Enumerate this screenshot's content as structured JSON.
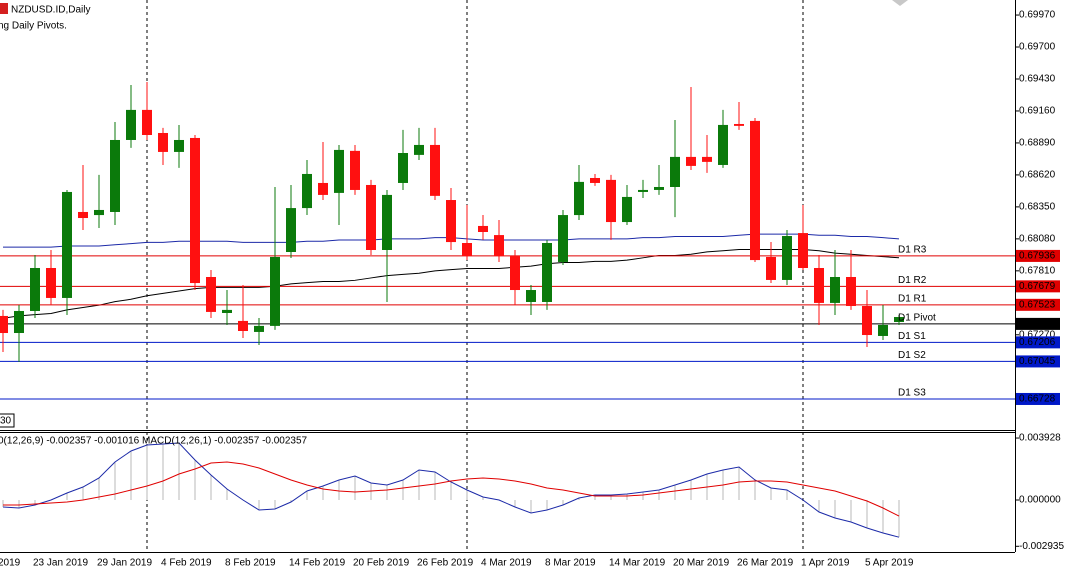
{
  "chart_data": {
    "type": "candlestick",
    "title": "NZDUSD.ID,Daily",
    "subtitle": "ng Daily Pivots.",
    "corner_label": "30",
    "x_edge_label": "2019",
    "categories": [
      null,
      null,
      "23 Jan 2019",
      null,
      null,
      null,
      "29 Jan 2019",
      null,
      null,
      null,
      "4 Feb 2019",
      null,
      null,
      null,
      "8 Feb 2019",
      null,
      null,
      null,
      "14 Feb 2019",
      null,
      null,
      null,
      "20 Feb 2019",
      null,
      null,
      null,
      "26 Feb 2019",
      null,
      null,
      null,
      "4 Mar 2019",
      null,
      null,
      null,
      "8 Mar 2019",
      null,
      null,
      null,
      "14 Mar 2019",
      null,
      null,
      null,
      "20 Mar 2019",
      null,
      null,
      null,
      "26 Mar 2019",
      null,
      null,
      null,
      "1 Apr 2019",
      null,
      null,
      null,
      "5 Apr 2019",
      null,
      null
    ],
    "open": [
      0.67429,
      0.67285,
      0.67471,
      0.67834,
      0.67581,
      0.68307,
      0.68281,
      0.68307,
      0.68915,
      0.69169,
      0.68974,
      0.68814,
      0.68932,
      0.67758,
      0.67454,
      0.67387,
      0.67294,
      0.67345,
      0.67969,
      0.6834,
      0.68552,
      0.68468,
      0.68823,
      0.68535,
      0.67986,
      0.68552,
      0.68789,
      0.68873,
      0.68408,
      0.68045,
      0.68189,
      0.68112,
      0.67935,
      0.67547,
      0.67547,
      0.67885,
      0.68281,
      0.68594,
      0.68578,
      0.68222,
      0.68476,
      0.68493,
      0.68518,
      0.68772,
      0.68772,
      0.68704,
      0.6905,
      0.69076,
      0.67927,
      0.67733,
      0.68129,
      0.67834,
      0.67539,
      0.67758,
      0.67513,
      0.6726,
      0.67378
    ],
    "high": [
      0.6748,
      0.67522,
      0.67944,
      0.67986,
      0.68493,
      0.68704,
      0.6862,
      0.69067,
      0.69379,
      0.69405,
      0.69017,
      0.69042,
      0.68957,
      0.67817,
      0.67648,
      0.6769,
      0.67412,
      0.68518,
      0.68535,
      0.68746,
      0.68898,
      0.68873,
      0.68873,
      0.68578,
      0.68493,
      0.69,
      0.69017,
      0.69017,
      0.6851,
      0.68366,
      0.68281,
      0.68239,
      0.67986,
      0.6769,
      0.68071,
      0.68324,
      0.68704,
      0.68628,
      0.6862,
      0.68535,
      0.68578,
      0.68704,
      0.69084,
      0.69362,
      0.68957,
      0.69169,
      0.69236,
      0.69101,
      0.68053,
      0.68155,
      0.68366,
      0.67944,
      0.67986,
      0.67986,
      0.67648,
      0.67522,
      0.67437
    ],
    "low": [
      0.67125,
      0.67041,
      0.67412,
      0.67522,
      0.67437,
      0.68155,
      0.68172,
      0.68197,
      0.68848,
      0.68915,
      0.68704,
      0.68679,
      0.67648,
      0.67412,
      0.67353,
      0.67243,
      0.67184,
      0.67311,
      0.67918,
      0.68281,
      0.68408,
      0.68197,
      0.68451,
      0.67944,
      0.67547,
      0.68493,
      0.68746,
      0.68408,
      0.67986,
      0.67901,
      0.68071,
      0.67885,
      0.67522,
      0.67437,
      0.6748,
      0.67859,
      0.68239,
      0.68527,
      0.68071,
      0.68197,
      0.68425,
      0.68451,
      0.68264,
      0.68662,
      0.68637,
      0.68679,
      0.69,
      0.67885,
      0.67707,
      0.6769,
      0.67817,
      0.67353,
      0.67437,
      0.6748,
      0.67167,
      0.67226,
      0.67353
    ],
    "close": [
      0.67285,
      0.67471,
      0.67834,
      0.67581,
      0.68476,
      0.68256,
      0.68324,
      0.68915,
      0.69169,
      0.68957,
      0.68814,
      0.68915,
      0.67707,
      0.67463,
      0.6748,
      0.67302,
      0.67345,
      0.67927,
      0.6834,
      0.68628,
      0.68451,
      0.68831,
      0.68493,
      0.67986,
      0.68451,
      0.68805,
      0.68873,
      0.68443,
      0.68053,
      0.67935,
      0.68138,
      0.67935,
      0.67648,
      0.67648,
      0.68045,
      0.68281,
      0.68561,
      0.68552,
      0.68222,
      0.68434,
      0.68493,
      0.68518,
      0.68772,
      0.68696,
      0.6873,
      0.69042,
      0.69034,
      0.67901,
      0.67733,
      0.68104,
      0.67834,
      0.67539,
      0.67758,
      0.67513,
      0.67268,
      0.67353,
      0.6742
    ],
    "up_color": "#0b7a0b",
    "down_color": "#ff1010",
    "ylim": [
      0.66466,
      0.70097
    ],
    "yticks": [
      {
        "value": 0.6997,
        "label": "0.69970"
      },
      {
        "value": 0.697,
        "label": "0.69700"
      },
      {
        "value": 0.6943,
        "label": "0.69430"
      },
      {
        "value": 0.6916,
        "label": "0.69160"
      },
      {
        "value": 0.6889,
        "label": "0.68890"
      },
      {
        "value": 0.6862,
        "label": "0.68620"
      },
      {
        "value": 0.6835,
        "label": "0.68350"
      },
      {
        "value": 0.6808,
        "label": "0.68080"
      },
      {
        "value": 0.6781,
        "label": "0.67810"
      },
      {
        "value": 0.6727,
        "label": "0.67270"
      }
    ],
    "moving_averages": [
      {
        "color": "#1c2aa8",
        "values": [
          0.6801,
          0.6801,
          0.6801,
          0.6801,
          0.6802,
          0.6802,
          0.6802,
          0.6803,
          0.6804,
          0.6805,
          0.6805,
          0.6806,
          0.6806,
          0.6806,
          0.6806,
          0.6805,
          0.6805,
          0.6805,
          0.6805,
          0.6806,
          0.6806,
          0.6807,
          0.6807,
          0.6807,
          0.6808,
          0.6808,
          0.6808,
          0.6809,
          0.6809,
          0.6808,
          0.6807,
          0.6807,
          0.6807,
          0.6807,
          0.6807,
          0.6807,
          0.6808,
          0.6808,
          0.6808,
          0.6808,
          0.6809,
          0.6809,
          0.681,
          0.681,
          0.681,
          0.681,
          0.6811,
          0.6812,
          0.6812,
          0.6812,
          0.6812,
          0.6811,
          0.6811,
          0.681,
          0.681,
          0.6809,
          0.6808
        ]
      },
      {
        "color": "#000000",
        "values": [
          0.6741,
          0.6743,
          0.6744,
          0.6745,
          0.6748,
          0.675,
          0.6752,
          0.6755,
          0.6757,
          0.676,
          0.6762,
          0.6764,
          0.6766,
          0.6767,
          0.6767,
          0.6767,
          0.6767,
          0.6768,
          0.677,
          0.6771,
          0.6772,
          0.6772,
          0.6773,
          0.6775,
          0.6777,
          0.6778,
          0.6779,
          0.6781,
          0.6782,
          0.6783,
          0.6783,
          0.6783,
          0.6784,
          0.6785,
          0.6787,
          0.6788,
          0.6788,
          0.6789,
          0.6789,
          0.679,
          0.6792,
          0.6794,
          0.6794,
          0.6795,
          0.6797,
          0.6798,
          0.6799,
          0.6799,
          0.6799,
          0.6799,
          0.6799,
          0.6798,
          0.6796,
          0.6795,
          0.6794,
          0.6793,
          0.6792
        ]
      }
    ],
    "pivots": [
      {
        "name": "D1 R3",
        "value": 0.67936,
        "color": "#e00000"
      },
      {
        "name": "D1 R2",
        "value": 0.67679,
        "color": "#e00000"
      },
      {
        "name": "D1 R1",
        "value": 0.67523,
        "color": "#e00000"
      },
      {
        "name": "D1 Pivot",
        "value": 0.67362,
        "color": "#000000"
      },
      {
        "name": "D1 S1",
        "value": 0.67206,
        "color": "#0018c8"
      },
      {
        "name": "D1 S2",
        "value": 0.67045,
        "color": "#0018c8"
      },
      {
        "name": "D1 S3",
        "value": 0.66728,
        "color": "#0018c8"
      }
    ],
    "macd": {
      "type": "macd",
      "legend": "0(12,26,9) -0.002357 -0.001016 MACD(12,26,1) -0.002357 -0.002357",
      "values": [
        -0.000444,
        -0.000507,
        -0.000317,
        0,
        0.000444,
        0.000824,
        0.001395,
        0.002409,
        0.003107,
        0.003487,
        0.00355,
        0.003614,
        0.002536,
        0.001585,
        0.000697,
        0,
        -0.000634,
        -0.000571,
        -0.000127,
        0.000571,
        0.000888,
        0.001268,
        0.001522,
        0.001078,
        0.000951,
        0.001268,
        0.001902,
        0.001775,
        0.001141,
        0.000634,
        0.00019,
        0,
        -0.000444,
        -0.000824,
        -0.000634,
        -0.000317,
        0.000127,
        0.000317,
        0.000317,
        0.00038,
        0.000507,
        0.000634,
        0.000951,
        0.001268,
        0.001648,
        0.001902,
        0.002092,
        0.001268,
        0.000761,
        0.000634,
        0,
        -0.000761,
        -0.001141,
        -0.001395,
        -0.001775,
        -0.002092,
        -0.002357
      ],
      "signal": [
        -0.000317,
        -0.000317,
        -0.000254,
        -0.00019,
        -0.000127,
        0,
        0.00019,
        0.00038,
        0.000634,
        0.000888,
        0.001205,
        0.001648,
        0.001965,
        0.002346,
        0.002409,
        0.002282,
        0.002029,
        0.001648,
        0.001268,
        0.000951,
        0.000697,
        0.000571,
        0.000507,
        0.000571,
        0.000634,
        0.000761,
        0.000888,
        0.001014,
        0.001205,
        0.001331,
        0.001395,
        0.001331,
        0.001205,
        0.001014,
        0.000761,
        0.000634,
        0.000444,
        0.000254,
        0.000254,
        0.000254,
        0.000317,
        0.000444,
        0.000571,
        0.000697,
        0.000824,
        0.000951,
        0.001141,
        0.001205,
        0.001205,
        0.001141,
        0.000951,
        0.000761,
        0.000571,
        0.000254,
        -6.3e-05,
        -0.000507,
        -0.001016
      ],
      "histogram_color": "#b8b8b8",
      "line_color": "#1c2aa8",
      "signal_color": "#e00000",
      "ylim": [
        -0.003297,
        0.004311
      ],
      "yticks": [
        0.003928,
        {
          "value": 0,
          "label": "0.000000"
        },
        -0.002935
      ]
    }
  }
}
